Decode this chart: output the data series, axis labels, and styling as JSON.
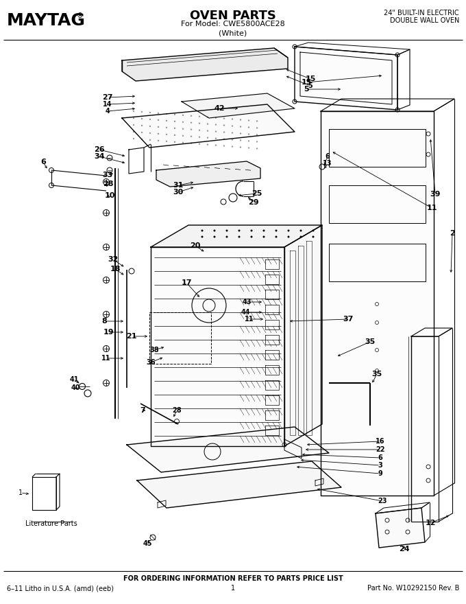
{
  "title": "OVEN PARTS",
  "subtitle1": "For Model: CWE5800ACE28",
  "subtitle2": "(White)",
  "brand": "MAYTAG",
  "top_right_line1": "24\" BUILT-IN ELECTRIC",
  "top_right_line2": "DOUBLE WALL OVEN",
  "bottom_center": "FOR ORDERING INFORMATION REFER TO PARTS PRICE LIST",
  "bottom_left": "6–11 Litho in U.S.A. (amd) (eeb)",
  "bottom_center_num": "1",
  "bottom_right": "Part No. W10292150 Rev. B",
  "lit_label": "Literature Parts",
  "bg_color": "#ffffff",
  "lc": "#000000"
}
